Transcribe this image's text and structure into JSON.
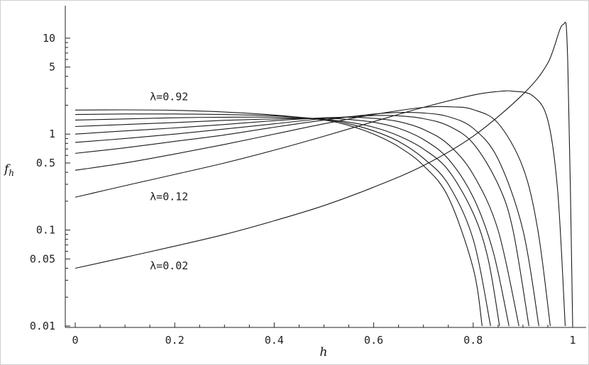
{
  "chart_data": {
    "type": "line",
    "xlabel": "h",
    "ylabel": "f_h",
    "ylabel_main": "f",
    "ylabel_sub": "h",
    "xlim": [
      0,
      1
    ],
    "ylim": [
      0.01,
      15
    ],
    "yscale": "log",
    "xticks": [
      0,
      0.2,
      0.4,
      0.6,
      0.8,
      1
    ],
    "xtick_labels": [
      "0",
      "0.2",
      "0.4",
      "0.6",
      "0.8",
      "1"
    ],
    "yticks": [
      0.01,
      0.05,
      0.1,
      0.5,
      1,
      5,
      10
    ],
    "ytick_labels": [
      "0.01",
      "0.05",
      "0.1",
      "0.5",
      "1",
      "5",
      "10"
    ],
    "grid": false,
    "annotations": [
      {
        "text": "λ=0.92",
        "x": 0.15,
        "y": 2.25
      },
      {
        "text": "λ=0.12",
        "x": 0.15,
        "y": 0.205
      },
      {
        "text": "λ=0.02",
        "x": 0.15,
        "y": 0.039
      }
    ],
    "series": [
      {
        "x": [
          0,
          0.1,
          0.2,
          0.3,
          0.4,
          0.5,
          0.6,
          0.7,
          0.8,
          0.9,
          0.95,
          0.98,
          0.99,
          1.0
        ],
        "y": [
          0.04,
          0.052,
          0.068,
          0.09,
          0.125,
          0.18,
          0.28,
          0.47,
          0.95,
          2.6,
          5.5,
          13.8,
          6,
          0.01
        ]
      },
      {
        "x": [
          0,
          0.1,
          0.2,
          0.3,
          0.4,
          0.5,
          0.6,
          0.7,
          0.8,
          0.85,
          0.88,
          0.92,
          0.95,
          0.97,
          0.985
        ],
        "y": [
          0.22,
          0.29,
          0.38,
          0.5,
          0.68,
          0.95,
          1.35,
          1.9,
          2.55,
          2.78,
          2.8,
          2.5,
          1.4,
          0.25,
          0.01
        ]
      },
      {
        "x": [
          0,
          0.1,
          0.2,
          0.3,
          0.4,
          0.5,
          0.6,
          0.7,
          0.76,
          0.8,
          0.85,
          0.9,
          0.93,
          0.955
        ],
        "y": [
          0.42,
          0.5,
          0.62,
          0.78,
          1.0,
          1.28,
          1.6,
          1.9,
          1.92,
          1.8,
          1.3,
          0.45,
          0.1,
          0.01
        ]
      },
      {
        "x": [
          0,
          0.1,
          0.2,
          0.3,
          0.4,
          0.5,
          0.6,
          0.65,
          0.7,
          0.75,
          0.8,
          0.85,
          0.9,
          0.932
        ],
        "y": [
          0.63,
          0.72,
          0.84,
          0.98,
          1.18,
          1.4,
          1.62,
          1.68,
          1.66,
          1.52,
          1.15,
          0.55,
          0.1,
          0.01
        ]
      },
      {
        "x": [
          0,
          0.1,
          0.2,
          0.3,
          0.4,
          0.5,
          0.6,
          0.65,
          0.7,
          0.75,
          0.8,
          0.85,
          0.88,
          0.912
        ],
        "y": [
          0.82,
          0.9,
          1.0,
          1.13,
          1.28,
          1.45,
          1.56,
          1.55,
          1.45,
          1.22,
          0.8,
          0.3,
          0.1,
          0.01
        ]
      },
      {
        "x": [
          0,
          0.1,
          0.2,
          0.3,
          0.4,
          0.5,
          0.55,
          0.6,
          0.65,
          0.7,
          0.75,
          0.8,
          0.85,
          0.892
        ],
        "y": [
          1.0,
          1.08,
          1.16,
          1.26,
          1.38,
          1.48,
          1.5,
          1.46,
          1.35,
          1.12,
          0.78,
          0.38,
          0.1,
          0.01
        ]
      },
      {
        "x": [
          0,
          0.1,
          0.2,
          0.3,
          0.4,
          0.5,
          0.55,
          0.6,
          0.65,
          0.7,
          0.75,
          0.8,
          0.84,
          0.872
        ],
        "y": [
          1.2,
          1.26,
          1.32,
          1.39,
          1.44,
          1.46,
          1.42,
          1.33,
          1.15,
          0.88,
          0.55,
          0.22,
          0.06,
          0.01
        ]
      },
      {
        "x": [
          0,
          0.1,
          0.2,
          0.3,
          0.4,
          0.5,
          0.55,
          0.6,
          0.65,
          0.7,
          0.75,
          0.8,
          0.83,
          0.853
        ],
        "y": [
          1.4,
          1.44,
          1.48,
          1.5,
          1.5,
          1.42,
          1.33,
          1.18,
          0.96,
          0.7,
          0.42,
          0.15,
          0.05,
          0.01
        ]
      },
      {
        "x": [
          0,
          0.1,
          0.2,
          0.3,
          0.4,
          0.5,
          0.55,
          0.6,
          0.65,
          0.7,
          0.75,
          0.8,
          0.835
        ],
        "y": [
          1.6,
          1.62,
          1.62,
          1.6,
          1.55,
          1.42,
          1.28,
          1.08,
          0.84,
          0.56,
          0.3,
          0.08,
          0.01
        ]
      },
      {
        "x": [
          0,
          0.1,
          0.2,
          0.3,
          0.4,
          0.5,
          0.55,
          0.6,
          0.65,
          0.7,
          0.75,
          0.8,
          0.818
        ],
        "y": [
          1.78,
          1.79,
          1.77,
          1.7,
          1.58,
          1.4,
          1.23,
          1.0,
          0.74,
          0.47,
          0.22,
          0.04,
          0.01
        ]
      }
    ]
  }
}
